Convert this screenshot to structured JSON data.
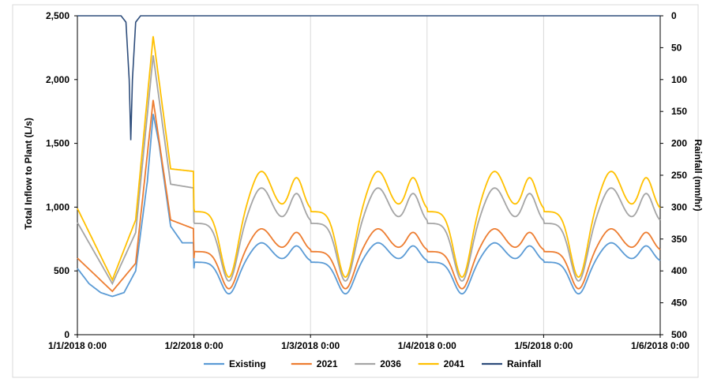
{
  "chart_data": {
    "type": "line",
    "title": "",
    "ylabel": "Total Inflow to Plant (L/s)",
    "y2label": "Rainfall (mm/hr)",
    "xlabel": "",
    "ylim": [
      0,
      2500
    ],
    "y2lim": [
      0,
      500
    ],
    "y2_inverted": true,
    "xlim": [
      "1/1/2018 0:00",
      "1/6/2018 0:00"
    ],
    "x_ticks": [
      "1/1/2018 0:00",
      "1/2/2018 0:00",
      "1/3/2018 0:00",
      "1/4/2018 0:00",
      "1/5/2018 0:00",
      "1/6/2018 0:00"
    ],
    "y_ticks": [
      "0",
      "500",
      "1,000",
      "1,500",
      "2,000",
      "2,500"
    ],
    "y2_ticks": [
      "0",
      "50",
      "100",
      "150",
      "200",
      "250",
      "300",
      "350",
      "400",
      "450",
      "500"
    ],
    "grid": "vertical",
    "legend_position": "bottom",
    "series": [
      {
        "name": "Existing",
        "axis": "left",
        "color": "#5b9bd5",
        "points": [
          [
            "1/1/2018 0:00",
            520
          ],
          [
            "1/1/2018 4:48",
            330
          ],
          [
            "1/1/2018 7:12",
            300
          ],
          [
            "1/1/2018 9:36",
            330
          ],
          [
            "1/1/2018 12:00",
            500
          ],
          [
            "1/1/2018 14:24",
            1200
          ],
          [
            "1/1/2018 15:36",
            1730
          ],
          [
            "1/1/2018 16:48",
            1500
          ],
          [
            "1/1/2018 19:12",
            850
          ],
          [
            "1/1/2018 21:36",
            720
          ],
          [
            "1/2/2018 0:00",
            720
          ],
          [
            "1/1/2018 2:24",
            400
          ]
        ]
      },
      {
        "name": "2021",
        "axis": "left",
        "color": "#ed7d31",
        "points": [
          [
            "1/1/2018 0:00",
            600
          ],
          [
            "1/1/2018 7:12",
            340
          ],
          [
            "1/1/2018 12:00",
            560
          ],
          [
            "1/1/2018 15:36",
            1840
          ],
          [
            "1/1/2018 19:12",
            900
          ],
          [
            "1/2/2018 0:00",
            830
          ]
        ]
      },
      {
        "name": "2036",
        "axis": "left",
        "color": "#a5a5a5",
        "points": [
          [
            "1/1/2018 0:00",
            880
          ],
          [
            "1/1/2018 7:12",
            400
          ],
          [
            "1/1/2018 12:00",
            800
          ],
          [
            "1/1/2018 15:36",
            2190
          ],
          [
            "1/1/2018 19:12",
            1180
          ],
          [
            "1/2/2018 0:00",
            1150
          ]
        ]
      },
      {
        "name": "2041",
        "axis": "left",
        "color": "#ffc000",
        "points": [
          [
            "1/1/2018 0:00",
            990
          ],
          [
            "1/1/2018 7:12",
            430
          ],
          [
            "1/1/2018 12:00",
            900
          ],
          [
            "1/1/2018 15:36",
            2340
          ],
          [
            "1/1/2018 19:12",
            1300
          ],
          [
            "1/2/2018 0:00",
            1280
          ]
        ]
      },
      {
        "name": "Rainfall",
        "axis": "right",
        "color": "#2e4d7b",
        "points": [
          [
            "1/1/2018 0:00",
            0
          ],
          [
            "1/1/2018 9:00",
            0
          ],
          [
            "1/1/2018 10:00",
            10
          ],
          [
            "1/1/2018 10:40",
            100
          ],
          [
            "1/1/2018 11:00",
            195
          ],
          [
            "1/1/2018 11:20",
            100
          ],
          [
            "1/1/2018 12:00",
            10
          ],
          [
            "1/1/2018 13:00",
            0
          ],
          [
            "1/6/2018 0:00",
            0
          ]
        ]
      }
    ],
    "daily_profile_note_free": true
  }
}
